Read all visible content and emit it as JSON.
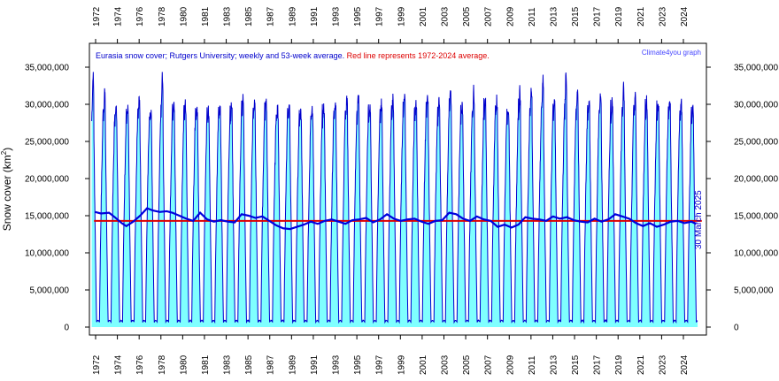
{
  "chart_data": {
    "type": "line",
    "title_part1": "Eurasia  snow cover; Rutgers University; weekly and 53-week average. ",
    "title_part2": "Red line represents 1972-2024 average.",
    "credit": "Climate4you graph",
    "ylabel_main": "Snow cover (km",
    "ylabel_sup": "2",
    "ylabel_close": ")",
    "latest_date": "30 March 2025",
    "ylim": [
      0,
      37000000
    ],
    "xlim": [
      1971.8,
      2025.3
    ],
    "yticks": [
      0,
      5000000,
      10000000,
      15000000,
      20000000,
      25000000,
      30000000,
      35000000
    ],
    "ytick_labels": [
      "0",
      "5,000,000",
      "10,000,000",
      "15,000,000",
      "20,000,000",
      "25,000,000",
      "30,000,000",
      "35,000,000"
    ],
    "xtick_labels": [
      "1972",
      "1974",
      "1976",
      "1978",
      "1980",
      "1981",
      "1983",
      "1985",
      "1987",
      "1989",
      "1991",
      "1993",
      "1995",
      "1997",
      "1999",
      "2001",
      "2003",
      "2005",
      "2007",
      "2009",
      "2011",
      "2013",
      "2015",
      "2017",
      "2019",
      "2021",
      "2023",
      "2024"
    ],
    "average_1972_2024": 14300000,
    "colors": {
      "weekly": "#0000cc",
      "fill": "#7fffff",
      "running_mean": "#0000dd",
      "average_line": "#dd0000",
      "title_blue": "#0000cc",
      "title_red": "#dd0000"
    },
    "series": [
      {
        "kind": "annual-maximum",
        "years": [
          1972,
          1973,
          1974,
          1975,
          1976,
          1977,
          1978,
          1979,
          1980,
          1981,
          1982,
          1983,
          1984,
          1985,
          1986,
          1987,
          1988,
          1989,
          1990,
          1991,
          1992,
          1993,
          1994,
          1995,
          1996,
          1997,
          1998,
          1999,
          2000,
          2001,
          2002,
          2003,
          2004,
          2005,
          2006,
          2007,
          2008,
          2009,
          2010,
          2011,
          2012,
          2013,
          2014,
          2015,
          2016,
          2017,
          2018,
          2019,
          2020,
          2021,
          2022,
          2023,
          2024,
          2025
        ],
        "values": [
          34500000,
          32000000,
          29500000,
          29500000,
          31000000,
          29000000,
          34500000,
          31000000,
          30000000,
          30000000,
          29000000,
          29500000,
          30000000,
          31000000,
          31000000,
          31000000,
          29500000,
          30000000,
          29000000,
          29000000,
          29500000,
          30500000,
          31000000,
          31500000,
          30000000,
          30000000,
          31000000,
          31500000,
          30500000,
          31000000,
          30500000,
          32500000,
          30500000,
          32000000,
          31000000,
          31000000,
          29500000,
          32000000,
          32500000,
          34000000,
          31000000,
          34500000,
          32000000,
          30500000,
          31500000,
          30500000,
          32500000,
          31500000,
          30500000,
          30500000,
          31000000,
          30500000,
          29500000,
          29000000
        ]
      },
      {
        "kind": "53-week-average",
        "x": [
          1972.3,
          1972.8,
          1973.5,
          1974.0,
          1974.6,
          1975.0,
          1975.6,
          1976.2,
          1976.8,
          1977.3,
          1977.9,
          1978.5,
          1979.0,
          1979.6,
          1980.2,
          1980.8,
          1981.4,
          1982.0,
          1982.6,
          1983.2,
          1983.8,
          1984.4,
          1985.0,
          1985.6,
          1986.2,
          1986.8,
          1987.4,
          1988.0,
          1988.6,
          1989.2,
          1989.8,
          1990.4,
          1991.0,
          1991.6,
          1992.2,
          1992.8,
          1993.4,
          1994.0,
          1994.6,
          1995.2,
          1995.8,
          1996.4,
          1997.0,
          1997.6,
          1998.2,
          1998.8,
          1999.4,
          2000.0,
          2000.6,
          2001.2,
          2001.8,
          2002.4,
          2003.0,
          2003.6,
          2004.2,
          2004.8,
          2005.4,
          2006.0,
          2006.6,
          2007.2,
          2007.8,
          2008.4,
          2009.0,
          2009.6,
          2010.2,
          2010.8,
          2011.4,
          2012.0,
          2012.6,
          2013.2,
          2013.8,
          2014.4,
          2015.0,
          2015.6,
          2016.2,
          2016.8,
          2017.4,
          2018.0,
          2018.6,
          2019.2,
          2019.8,
          2020.4,
          2021.0,
          2021.6,
          2022.2,
          2022.8,
          2023.4,
          2024.0,
          2024.4
        ],
        "y": [
          15500000,
          15300000,
          15400000,
          14800000,
          14000000,
          13600000,
          14200000,
          15000000,
          16000000,
          15700000,
          15500000,
          15600000,
          15400000,
          15000000,
          14600000,
          14300000,
          15400000,
          14500000,
          14200000,
          14400000,
          14200000,
          14100000,
          15200000,
          15000000,
          14700000,
          14900000,
          14300000,
          13700000,
          13300000,
          13200000,
          13500000,
          13800000,
          14200000,
          13900000,
          14300000,
          14500000,
          14200000,
          13900000,
          14400000,
          14500000,
          14700000,
          14100000,
          14500000,
          15200000,
          14600000,
          14300000,
          14500000,
          14600000,
          14200000,
          13900000,
          14300000,
          14400000,
          15400000,
          15200000,
          14600000,
          14300000,
          14900000,
          14500000,
          14300000,
          13500000,
          13800000,
          13400000,
          13800000,
          14800000,
          14600000,
          14500000,
          14300000,
          14900000,
          14600000,
          14800000,
          14400000,
          14200000,
          14100000,
          14600000,
          14200000,
          14500000,
          15200000,
          14900000,
          14600000,
          14000000,
          13600000,
          14000000,
          13500000,
          13800000,
          14200000,
          14300000,
          14000000,
          14200000,
          13900000
        ]
      },
      {
        "kind": "1972-2024-average",
        "y": 14300000
      }
    ]
  }
}
